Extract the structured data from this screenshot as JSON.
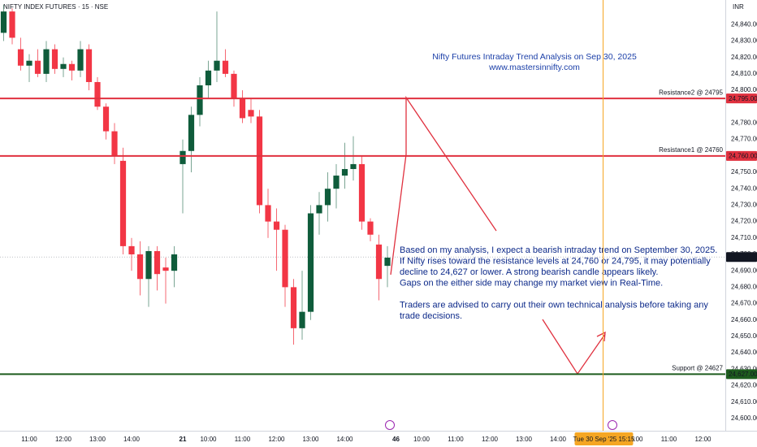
{
  "chart_data": {
    "type": "candlestick",
    "title": "NIFTY INDEX FUTURES · 15 · NSE",
    "currency": "INR",
    "annotation_title": "Nifty Futures Intraday Trend Analysis on Sep 30, 2025",
    "annotation_url": "www.mastersinnifty.com",
    "annotation_paragraphs": [
      [
        "Based on my analysis, I expect a bearish intraday trend on September 30, 2025.",
        "If Nifty rises toward the resistance levels at 24,760 or 24,795, it may potentially",
        "decline to 24,627 or lower. A strong bearish candle appears likely.",
        "Gaps on the either side may change my market view in Real-Time."
      ],
      [
        "Traders are advised to carry out their own technical analysis before taking any",
        "trade decisions."
      ]
    ],
    "up_color": "#0f5c3b",
    "down_color": "#f23645",
    "open": [
      24835,
      24848,
      24825,
      24815,
      24818,
      24810,
      24825,
      24813,
      24816,
      24812,
      24825,
      24805,
      24790,
      24775,
      24757,
      24705,
      24700,
      24685,
      24702,
      24692,
      24690,
      24755,
      24763,
      24785,
      24803,
      24812,
      24818,
      24810,
      24795,
      24788,
      24784,
      24730,
      24720,
      24715,
      24680,
      24655,
      24665,
      24725,
      24730,
      24740,
      24748,
      24752,
      24755,
      24720,
      24706,
      24693
    ],
    "high": [
      24852,
      24850,
      24832,
      24822,
      24825,
      24830,
      24828,
      24820,
      24818,
      24830,
      24828,
      24808,
      24792,
      24780,
      24765,
      24710,
      24708,
      24705,
      24705,
      24698,
      24705,
      24770,
      24790,
      24808,
      24818,
      24848,
      24825,
      24812,
      24800,
      24795,
      24788,
      24740,
      24728,
      24718,
      24685,
      24690,
      24730,
      24738,
      24750,
      24755,
      24768,
      24772,
      24760,
      24722,
      24712,
      24705
    ],
    "low": [
      24830,
      24828,
      24812,
      24805,
      24808,
      24805,
      24810,
      24808,
      24806,
      24808,
      24800,
      24788,
      24770,
      24755,
      24700,
      24690,
      24675,
      24668,
      24678,
      24670,
      24680,
      24725,
      24750,
      24778,
      24795,
      24805,
      24808,
      24790,
      24780,
      24780,
      24725,
      24710,
      24690,
      24668,
      24645,
      24648,
      24660,
      24712,
      24720,
      24728,
      24740,
      24745,
      24715,
      24708,
      24672,
      24680
    ],
    "close": [
      24848,
      24832,
      24815,
      24818,
      24810,
      24825,
      24813,
      24816,
      24812,
      24825,
      24805,
      24790,
      24775,
      24760,
      24705,
      24700,
      24685,
      24702,
      24688,
      24690,
      24700,
      24763,
      24785,
      24803,
      24812,
      24818,
      24810,
      24795,
      24783,
      24784,
      24730,
      24720,
      24715,
      24680,
      24655,
      24665,
      24725,
      24730,
      24740,
      24748,
      24752,
      24755,
      24720,
      24712,
      24685,
      24698
    ],
    "xlim": [
      -0.43,
      84.62
    ],
    "xticks": [
      {
        "value": 3,
        "label": "11:00"
      },
      {
        "value": 7,
        "label": "12:00"
      },
      {
        "value": 11,
        "label": "13:00"
      },
      {
        "value": 15,
        "label": "14:00"
      },
      21,
      {
        "value": 24,
        "label": "10:00"
      },
      {
        "value": 28,
        "label": "11:00"
      },
      {
        "value": 32,
        "label": "12:00"
      },
      {
        "value": 36,
        "label": "13:00"
      },
      {
        "value": 40,
        "label": "14:00"
      },
      46,
      {
        "value": 49,
        "label": "10:00"
      },
      {
        "value": 53,
        "label": "11:00"
      },
      {
        "value": 57,
        "label": "12:00"
      },
      {
        "value": 61,
        "label": "13:00"
      },
      {
        "value": 65,
        "label": "14:00"
      },
      {
        "value": 74,
        "label": "10:00"
      },
      {
        "value": 78,
        "label": "11:00"
      },
      {
        "value": 82,
        "label": "12:00"
      }
    ],
    "ylim": [
      24595,
      24855
    ],
    "yticks": [
      {
        "value": 24600,
        "label": "24,600.00"
      },
      {
        "value": 24610,
        "label": "24,610.00"
      },
      {
        "value": 24620,
        "label": "24,620.00"
      },
      {
        "value": 24630,
        "label": "24,630.00"
      },
      {
        "value": 24640,
        "label": "24,640.00"
      },
      {
        "value": 24650,
        "label": "24,650.00"
      },
      {
        "value": 24660,
        "label": "24,660.00"
      },
      {
        "value": 24670,
        "label": "24,670.00"
      },
      {
        "value": 24680,
        "label": "24,680.00"
      },
      {
        "value": 24690,
        "label": "24,690.00"
      },
      {
        "value": 24700,
        "label": "24,700.00"
      },
      {
        "value": 24710,
        "label": "24,710.00"
      },
      {
        "value": 24720,
        "label": "24,720.00"
      },
      {
        "value": 24730,
        "label": "24,730.00"
      },
      {
        "value": 24740,
        "label": "24,740.00"
      },
      {
        "value": 24750,
        "label": "24,750.00"
      },
      {
        "value": 24770,
        "label": "24,770.00"
      },
      {
        "value": 24780,
        "label": "24,780.00"
      },
      {
        "value": 24800,
        "label": "24,800.00"
      },
      {
        "value": 24810,
        "label": "24,810.00"
      },
      {
        "value": 24820,
        "label": "24,820.00"
      },
      {
        "value": 24830,
        "label": "24,830.00"
      },
      {
        "value": 24840,
        "label": "24,840.00"
      }
    ],
    "hlines": [
      {
        "value": 24795,
        "label": "Resistance2 @ 24795",
        "price_label": "24,795.00",
        "color": "#e0313f"
      },
      {
        "value": 24760,
        "label": "Resistance1 @ 24760",
        "price_label": "24,760.00",
        "color": "#e0313f"
      },
      {
        "value": 24627,
        "label": "Support @ 24627",
        "price_label": "24,627.00",
        "color": "#1e5c1e"
      }
    ],
    "last_price": {
      "value": 24698.4,
      "label": "24,698.40"
    },
    "crosshair": {
      "x": 70,
      "label": "Tue 30 Sep '25  15:15",
      "color": "#f5a623"
    }
  }
}
